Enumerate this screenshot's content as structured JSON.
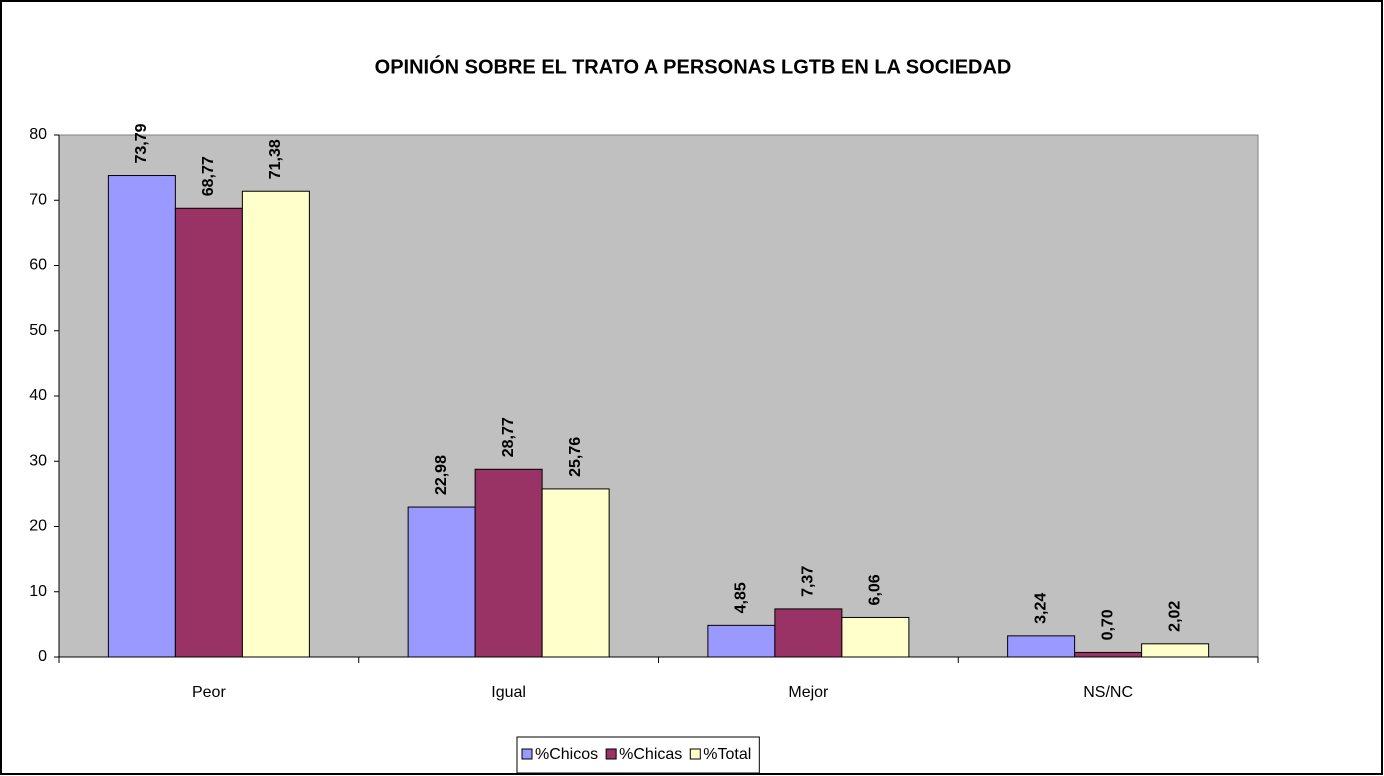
{
  "chart_data": {
    "type": "bar",
    "title": "OPINIÓN SOBRE EL TRATO A PERSONAS LGTB EN LA SOCIEDAD",
    "categories": [
      "Peor",
      "Igual",
      "Mejor",
      "NS/NC"
    ],
    "series": [
      {
        "name": "%Chicos",
        "color": "#9999ff",
        "values": [
          73.79,
          22.98,
          4.85,
          3.24
        ],
        "value_labels": [
          "73,79",
          "22,98",
          "4,85",
          "3,24"
        ]
      },
      {
        "name": "%Chicas",
        "color": "#993366",
        "values": [
          68.77,
          28.77,
          7.37,
          0.7
        ],
        "value_labels": [
          "68,77",
          "28,77",
          "7,37",
          "0,70"
        ]
      },
      {
        "name": "%Total",
        "color": "#ffffcc",
        "values": [
          71.38,
          25.76,
          6.06,
          2.02
        ],
        "value_labels": [
          "71,38",
          "25,76",
          "6,06",
          "2,02"
        ]
      }
    ],
    "ylim": [
      0,
      80
    ],
    "yticks": [
      0,
      10,
      20,
      30,
      40,
      50,
      60,
      70,
      80
    ],
    "legend": "bottom"
  }
}
